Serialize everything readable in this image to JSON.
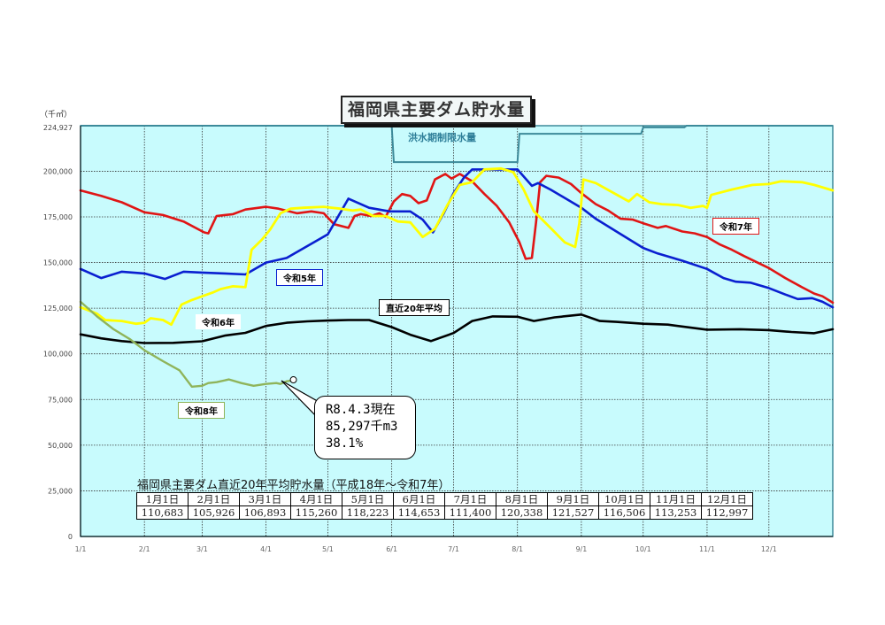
{
  "page": {
    "title": "福岡県主要ダム貯水量",
    "unit_label": "（千㎥）",
    "ymax_label": "224,927",
    "flood_label": "洪水期制限水量",
    "labels": {
      "r5": "令和5年",
      "r6": "令和6年",
      "r7": "令和7年",
      "r8": "令和8年",
      "avg": "直近20年平均"
    },
    "callout": {
      "line1": "R8.4.3現在",
      "line2": "85,297千m3",
      "line3": " 38.1%"
    },
    "avg_table": {
      "title": "福岡県主要ダム直近20年平均貯水量（平成18年～令和7年）",
      "headers": [
        "1月1日",
        "2月1日",
        "3月1日",
        "4月1日",
        "5月1日",
        "6月1日",
        "7月1日",
        "8月1日",
        "9月1日",
        "10月1日",
        "11月1日",
        "12月1日"
      ],
      "values": [
        "110,683",
        "105,926",
        "106,893",
        "115,260",
        "118,223",
        "114,653",
        "111,400",
        "120,338",
        "121,527",
        "116,506",
        "113,253",
        "112,997"
      ]
    }
  },
  "chart_data": {
    "type": "line",
    "title": "福岡県主要ダム貯水量",
    "xlabel": "",
    "ylabel": "（千㎥）",
    "ylim": [
      0,
      224927
    ],
    "yticks": [
      0,
      25000,
      50000,
      75000,
      100000,
      125000,
      150000,
      175000,
      200000,
      224927
    ],
    "ytick_labels": [
      "0",
      "25,000",
      "50,000",
      "75,000",
      "100,000",
      "125,000",
      "150,000",
      "175,000",
      "200,000",
      "224,927"
    ],
    "xticks": [
      "1/1",
      "2/1",
      "3/1",
      "4/1",
      "5/1",
      "6/1",
      "7/1",
      "8/1",
      "9/1",
      "10/1",
      "11/1",
      "12/1"
    ],
    "xtick_days": [
      0,
      31,
      59,
      90,
      120,
      151,
      181,
      212,
      243,
      273,
      304,
      334
    ],
    "x_max_day": 365,
    "grid": true,
    "background": "#c8fbfd",
    "series": [
      {
        "name": "令和7年",
        "color": "#e01515",
        "width": 2.6,
        "points": [
          [
            0,
            189500
          ],
          [
            10,
            186500
          ],
          [
            20,
            183000
          ],
          [
            31,
            177500
          ],
          [
            40,
            176000
          ],
          [
            50,
            172500
          ],
          [
            60,
            166500
          ],
          [
            62,
            166000
          ],
          [
            66,
            175500
          ],
          [
            74,
            176500
          ],
          [
            80,
            179000
          ],
          [
            90,
            180500
          ],
          [
            96,
            179500
          ],
          [
            105,
            177000
          ],
          [
            112,
            178000
          ],
          [
            118,
            177000
          ],
          [
            123,
            171000
          ],
          [
            130,
            169000
          ],
          [
            133,
            175500
          ],
          [
            136,
            176500
          ],
          [
            141,
            175500
          ],
          [
            145,
            177000
          ],
          [
            148,
            175000
          ],
          [
            152,
            183500
          ],
          [
            156,
            187500
          ],
          [
            160,
            186500
          ],
          [
            164,
            182500
          ],
          [
            168,
            184000
          ],
          [
            172,
            195500
          ],
          [
            177,
            198500
          ],
          [
            180,
            196000
          ],
          [
            184,
            198500
          ],
          [
            190,
            194500
          ],
          [
            196,
            187500
          ],
          [
            202,
            181000
          ],
          [
            208,
            172000
          ],
          [
            213,
            161000
          ],
          [
            216,
            152000
          ],
          [
            219,
            152500
          ],
          [
            221,
            172000
          ],
          [
            223,
            194000
          ],
          [
            226,
            197500
          ],
          [
            232,
            196500
          ],
          [
            238,
            193000
          ],
          [
            243,
            188000
          ],
          [
            250,
            182000
          ],
          [
            256,
            178500
          ],
          [
            262,
            174000
          ],
          [
            268,
            173500
          ],
          [
            273,
            171500
          ],
          [
            280,
            169000
          ],
          [
            284,
            170000
          ],
          [
            292,
            167000
          ],
          [
            298,
            166000
          ],
          [
            304,
            164000
          ],
          [
            310,
            160000
          ],
          [
            316,
            157000
          ],
          [
            322,
            153500
          ],
          [
            334,
            147000
          ],
          [
            342,
            141500
          ],
          [
            350,
            136500
          ],
          [
            356,
            133000
          ],
          [
            360,
            131500
          ],
          [
            365,
            128000
          ]
        ]
      },
      {
        "name": "令和5年",
        "color": "#0a1fd0",
        "width": 2.6,
        "points": [
          [
            0,
            146500
          ],
          [
            10,
            141500
          ],
          [
            20,
            145000
          ],
          [
            31,
            144000
          ],
          [
            41,
            141000
          ],
          [
            50,
            145000
          ],
          [
            59,
            144500
          ],
          [
            70,
            144000
          ],
          [
            80,
            143500
          ],
          [
            90,
            150000
          ],
          [
            100,
            152500
          ],
          [
            110,
            159000
          ],
          [
            120,
            165500
          ],
          [
            130,
            185000
          ],
          [
            140,
            180000
          ],
          [
            150,
            178000
          ],
          [
            160,
            178000
          ],
          [
            166,
            173500
          ],
          [
            171,
            166500
          ],
          [
            176,
            176500
          ],
          [
            181,
            188000
          ],
          [
            186,
            196500
          ],
          [
            190,
            201000
          ],
          [
            200,
            201000
          ],
          [
            212,
            201000
          ],
          [
            219,
            192000
          ],
          [
            222,
            193500
          ],
          [
            228,
            190000
          ],
          [
            243,
            180000
          ],
          [
            250,
            174000
          ],
          [
            260,
            167000
          ],
          [
            273,
            158000
          ],
          [
            280,
            155000
          ],
          [
            292,
            151000
          ],
          [
            304,
            146500
          ],
          [
            312,
            141500
          ],
          [
            318,
            139500
          ],
          [
            325,
            139000
          ],
          [
            334,
            136000
          ],
          [
            342,
            132500
          ],
          [
            348,
            130000
          ],
          [
            355,
            130500
          ],
          [
            360,
            128500
          ],
          [
            365,
            125500
          ]
        ]
      },
      {
        "name": "令和6年",
        "color": "#ffff00",
        "width": 2.8,
        "points": [
          [
            0,
            125500
          ],
          [
            8,
            122000
          ],
          [
            12,
            118500
          ],
          [
            20,
            118000
          ],
          [
            27,
            116500
          ],
          [
            31,
            117000
          ],
          [
            34,
            119500
          ],
          [
            40,
            118500
          ],
          [
            44,
            116000
          ],
          [
            49,
            127000
          ],
          [
            54,
            129500
          ],
          [
            59,
            131500
          ],
          [
            64,
            133500
          ],
          [
            68,
            135500
          ],
          [
            74,
            137000
          ],
          [
            80,
            136500
          ],
          [
            83,
            157000
          ],
          [
            88,
            162500
          ],
          [
            92,
            168000
          ],
          [
            97,
            177000
          ],
          [
            102,
            179500
          ],
          [
            108,
            180000
          ],
          [
            118,
            180500
          ],
          [
            126,
            179500
          ],
          [
            132,
            178500
          ],
          [
            136,
            179000
          ],
          [
            142,
            175500
          ],
          [
            148,
            175500
          ],
          [
            154,
            172500
          ],
          [
            160,
            172000
          ],
          [
            166,
            164000
          ],
          [
            172,
            168500
          ],
          [
            178,
            181500
          ],
          [
            184,
            192500
          ],
          [
            190,
            194000
          ],
          [
            196,
            201000
          ],
          [
            204,
            201500
          ],
          [
            210,
            199500
          ],
          [
            215,
            190000
          ],
          [
            220,
            178000
          ],
          [
            228,
            169000
          ],
          [
            235,
            161000
          ],
          [
            240,
            158500
          ],
          [
            242,
            171500
          ],
          [
            244,
            195500
          ],
          [
            250,
            193500
          ],
          [
            258,
            188500
          ],
          [
            266,
            183500
          ],
          [
            270,
            187500
          ],
          [
            276,
            183000
          ],
          [
            282,
            182000
          ],
          [
            290,
            181500
          ],
          [
            296,
            180000
          ],
          [
            302,
            181000
          ],
          [
            304,
            180000
          ],
          [
            306,
            187000
          ],
          [
            316,
            190000
          ],
          [
            326,
            192500
          ],
          [
            334,
            193000
          ],
          [
            340,
            194500
          ],
          [
            350,
            194000
          ],
          [
            356,
            192500
          ],
          [
            365,
            189500
          ]
        ]
      },
      {
        "name": "直近20年平均",
        "color": "#000000",
        "width": 2.6,
        "points": [
          [
            0,
            110683
          ],
          [
            10,
            108500
          ],
          [
            20,
            107000
          ],
          [
            31,
            105926
          ],
          [
            45,
            106000
          ],
          [
            59,
            106893
          ],
          [
            70,
            110000
          ],
          [
            80,
            111500
          ],
          [
            90,
            115260
          ],
          [
            100,
            117000
          ],
          [
            110,
            117800
          ],
          [
            120,
            118223
          ],
          [
            130,
            118500
          ],
          [
            140,
            118500
          ],
          [
            151,
            114653
          ],
          [
            160,
            110500
          ],
          [
            170,
            107000
          ],
          [
            181,
            111400
          ],
          [
            190,
            118000
          ],
          [
            200,
            120500
          ],
          [
            212,
            120338
          ],
          [
            220,
            118000
          ],
          [
            230,
            120000
          ],
          [
            243,
            121527
          ],
          [
            252,
            118000
          ],
          [
            260,
            117500
          ],
          [
            273,
            116506
          ],
          [
            285,
            116000
          ],
          [
            304,
            113253
          ],
          [
            320,
            113500
          ],
          [
            334,
            112997
          ],
          [
            345,
            112000
          ],
          [
            356,
            111300
          ],
          [
            365,
            113500
          ]
        ]
      },
      {
        "name": "令和8年",
        "color": "#8fb45a",
        "width": 2.4,
        "points": [
          [
            0,
            128500
          ],
          [
            8,
            120500
          ],
          [
            16,
            113500
          ],
          [
            24,
            108000
          ],
          [
            31,
            102000
          ],
          [
            40,
            96000
          ],
          [
            48,
            91000
          ],
          [
            54,
            82000
          ],
          [
            59,
            82500
          ],
          [
            62,
            84000
          ],
          [
            66,
            84500
          ],
          [
            72,
            86000
          ],
          [
            78,
            84000
          ],
          [
            84,
            82500
          ],
          [
            90,
            83500
          ],
          [
            95,
            84000
          ],
          [
            97,
            83500
          ],
          [
            100,
            85000
          ],
          [
            102,
            85297
          ]
        ]
      }
    ],
    "flood_limit": {
      "name": "洪水期制限水量",
      "color": "#3d8a9a",
      "points": [
        [
          0,
          224927
        ],
        [
          151,
          224927
        ],
        [
          152,
          205000
        ],
        [
          212,
          205000
        ],
        [
          213,
          220500
        ],
        [
          272,
          220500
        ],
        [
          273,
          224000
        ],
        [
          293,
          224000
        ],
        [
          294,
          224927
        ],
        [
          365,
          224927
        ]
      ]
    },
    "annotations": [
      {
        "text": "R8.4.3現在 85,297千m3 38.1%",
        "day": 102,
        "value": 85297
      }
    ]
  }
}
